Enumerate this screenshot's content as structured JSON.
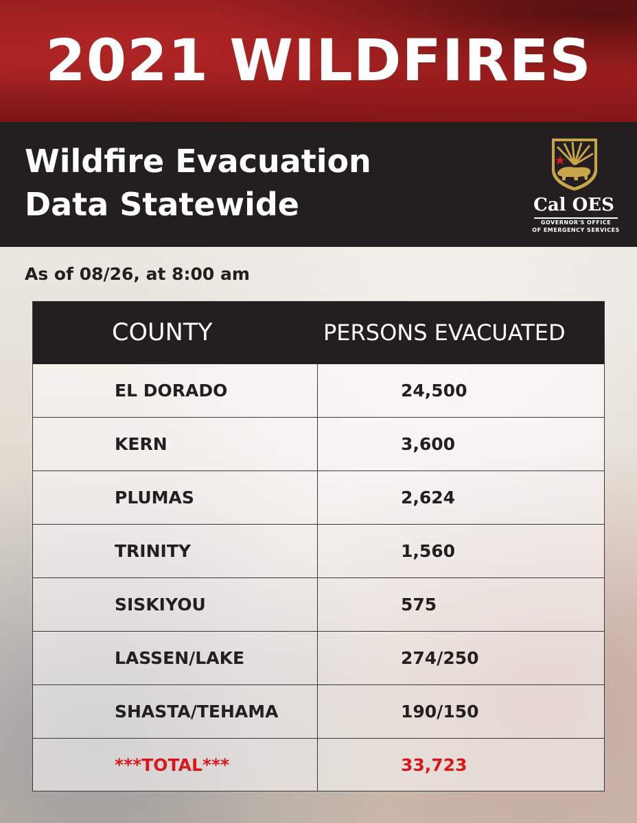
{
  "banner": {
    "title": "2021 WILDFIRES"
  },
  "header": {
    "title_line1": "Wildfire Evacuation",
    "title_line2": "Data Statewide"
  },
  "logo": {
    "name": "Cal OES",
    "subtitle_line1": "GOVERNOR'S OFFICE",
    "subtitle_line2": "OF EMERGENCY SERVICES"
  },
  "as_of": "As of 08/26, at 8:00 am",
  "table": {
    "columns": [
      "COUNTY",
      "PERSONS EVACUATED"
    ],
    "rows": [
      {
        "county": "EL DORADO",
        "persons": "24,500"
      },
      {
        "county": "KERN",
        "persons": "3,600"
      },
      {
        "county": "PLUMAS",
        "persons": "2,624"
      },
      {
        "county": "TRINITY",
        "persons": "1,560"
      },
      {
        "county": "SISKIYOU",
        "persons": "575"
      },
      {
        "county": "LASSEN/LAKE",
        "persons": "274/250"
      },
      {
        "county": "SHASTA/TEHAMA",
        "persons": "190/150"
      },
      {
        "county": "***TOTAL***",
        "persons": "33,723"
      }
    ]
  },
  "colors": {
    "banner_red": "#a52222",
    "header_dark": "#231f20",
    "total_red": "#d9171d",
    "logo_gold": "#c8a44a"
  }
}
